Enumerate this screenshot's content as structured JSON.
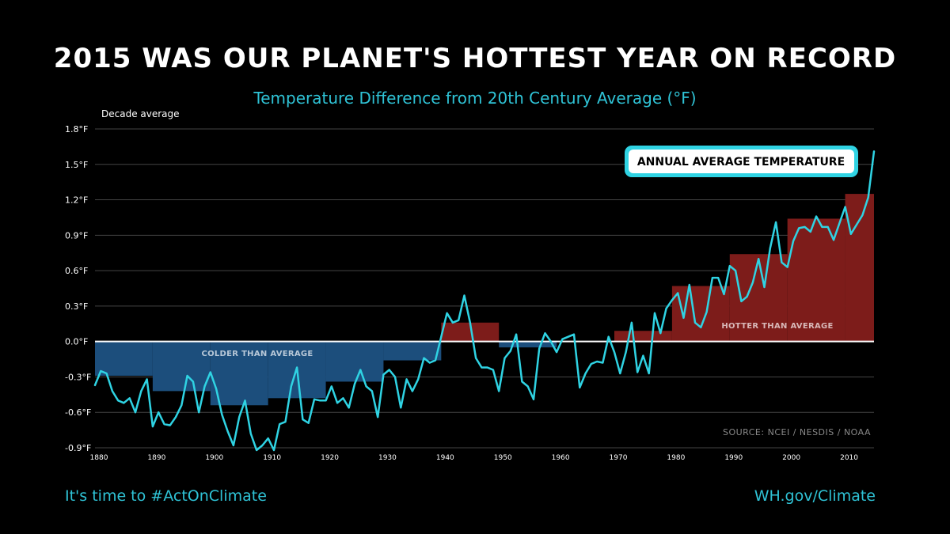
{
  "header": {
    "title": "2015 WAS OUR PLANET'S HOTTEST YEAR ON RECORD",
    "subtitle": "Temperature Difference from 20th Century Average (°F)"
  },
  "footer": {
    "left": "It's time to #ActOnClimate",
    "right": "WH.gov/Climate"
  },
  "chart_data": {
    "type": "bar",
    "title": "2015 WAS OUR PLANET'S HOTTEST YEAR ON RECORD",
    "subtitle": "Temperature Difference from 20th Century Average (°F)",
    "ylabel": "Decade average",
    "xlabel": "",
    "ylim": [
      -0.9,
      1.8
    ],
    "xlim": [
      1880,
      2015
    ],
    "yticks": [
      1.8,
      1.5,
      1.2,
      0.9,
      0.6,
      0.3,
      0.0,
      -0.3,
      -0.6,
      -0.9
    ],
    "ytick_labels": [
      "1.8°F",
      "1.5°F",
      "1.2°F",
      "0.9°F",
      "0.6°F",
      "0.3°F",
      "0.0°F",
      "-0.3°F",
      "-0.6°F",
      "-0.9°F"
    ],
    "xticks": [
      1880,
      1890,
      1900,
      1910,
      1920,
      1930,
      1940,
      1950,
      1960,
      1970,
      1980,
      1990,
      2000,
      2010
    ],
    "grid": true,
    "colors": {
      "cold": "#1c4e7c",
      "hot": "#7d1c1a",
      "line": "#2fd3e3",
      "grid": "#444444",
      "zero": "#ffffff"
    },
    "region_labels": {
      "cold": "COLDER THAN AVERAGE",
      "hot": "HOTTER THAN AVERAGE"
    },
    "callout": "ANNUAL AVERAGE TEMPERATURE",
    "source": "SOURCE: NCEI / NESDIS / NOAA",
    "decade_series": {
      "name": "Decade average",
      "bars": [
        {
          "start": 1880,
          "end": 1890,
          "value": -0.29
        },
        {
          "start": 1890,
          "end": 1900,
          "value": -0.42
        },
        {
          "start": 1900,
          "end": 1910,
          "value": -0.54
        },
        {
          "start": 1910,
          "end": 1920,
          "value": -0.48
        },
        {
          "start": 1920,
          "end": 1930,
          "value": -0.34
        },
        {
          "start": 1930,
          "end": 1940,
          "value": -0.16
        },
        {
          "start": 1940,
          "end": 1950,
          "value": 0.16
        },
        {
          "start": 1950,
          "end": 1960,
          "value": -0.05
        },
        {
          "start": 1960,
          "end": 1970,
          "value": 0.0
        },
        {
          "start": 1970,
          "end": 1980,
          "value": 0.09
        },
        {
          "start": 1980,
          "end": 1990,
          "value": 0.47
        },
        {
          "start": 1990,
          "end": 2000,
          "value": 0.74
        },
        {
          "start": 2000,
          "end": 2010,
          "value": 1.04
        },
        {
          "start": 2010,
          "end": 2016,
          "value": 1.25
        }
      ]
    },
    "annual_series": {
      "name": "Annual average temperature",
      "x": [
        1880,
        1881,
        1882,
        1883,
        1884,
        1885,
        1886,
        1887,
        1888,
        1889,
        1890,
        1891,
        1892,
        1893,
        1894,
        1895,
        1896,
        1897,
        1898,
        1899,
        1900,
        1901,
        1902,
        1903,
        1904,
        1905,
        1906,
        1907,
        1908,
        1909,
        1910,
        1911,
        1912,
        1913,
        1914,
        1915,
        1916,
        1917,
        1918,
        1919,
        1920,
        1921,
        1922,
        1923,
        1924,
        1925,
        1926,
        1927,
        1928,
        1929,
        1930,
        1931,
        1932,
        1933,
        1934,
        1935,
        1936,
        1937,
        1938,
        1939,
        1940,
        1941,
        1942,
        1943,
        1944,
        1945,
        1946,
        1947,
        1948,
        1949,
        1950,
        1951,
        1952,
        1953,
        1954,
        1955,
        1956,
        1957,
        1958,
        1959,
        1960,
        1961,
        1962,
        1963,
        1964,
        1965,
        1966,
        1967,
        1968,
        1969,
        1970,
        1971,
        1972,
        1973,
        1974,
        1975,
        1976,
        1977,
        1978,
        1979,
        1980,
        1981,
        1982,
        1983,
        1984,
        1985,
        1986,
        1987,
        1988,
        1989,
        1990,
        1991,
        1992,
        1993,
        1994,
        1995,
        1996,
        1997,
        1998,
        1999,
        2000,
        2001,
        2002,
        2003,
        2004,
        2005,
        2006,
        2007,
        2008,
        2009,
        2010,
        2011,
        2012,
        2013,
        2014,
        2015
      ],
      "values": [
        -0.37,
        -0.25,
        -0.27,
        -0.42,
        -0.5,
        -0.52,
        -0.48,
        -0.6,
        -0.42,
        -0.32,
        -0.72,
        -0.6,
        -0.7,
        -0.71,
        -0.64,
        -0.54,
        -0.29,
        -0.34,
        -0.6,
        -0.38,
        -0.26,
        -0.4,
        -0.62,
        -0.76,
        -0.88,
        -0.64,
        -0.5,
        -0.78,
        -0.92,
        -0.88,
        -0.82,
        -0.92,
        -0.7,
        -0.68,
        -0.38,
        -0.22,
        -0.66,
        -0.69,
        -0.49,
        -0.5,
        -0.5,
        -0.38,
        -0.52,
        -0.48,
        -0.56,
        -0.36,
        -0.24,
        -0.38,
        -0.42,
        -0.64,
        -0.28,
        -0.24,
        -0.3,
        -0.56,
        -0.32,
        -0.42,
        -0.32,
        -0.14,
        -0.18,
        -0.16,
        0.04,
        0.24,
        0.16,
        0.18,
        0.39,
        0.16,
        -0.14,
        -0.22,
        -0.22,
        -0.24,
        -0.42,
        -0.14,
        -0.08,
        0.06,
        -0.34,
        -0.38,
        -0.49,
        -0.06,
        0.07,
        0.0,
        -0.09,
        0.02,
        0.04,
        0.06,
        -0.39,
        -0.27,
        -0.19,
        -0.17,
        -0.18,
        0.04,
        -0.09,
        -0.27,
        -0.09,
        0.16,
        -0.26,
        -0.12,
        -0.27,
        0.24,
        0.07,
        0.28,
        0.35,
        0.41,
        0.2,
        0.48,
        0.16,
        0.12,
        0.25,
        0.54,
        0.54,
        0.4,
        0.64,
        0.6,
        0.34,
        0.38,
        0.5,
        0.7,
        0.46,
        0.79,
        1.01,
        0.67,
        0.63,
        0.85,
        0.96,
        0.97,
        0.93,
        1.06,
        0.97,
        0.97,
        0.86,
        1.0,
        1.14,
        0.91,
        0.99,
        1.07,
        1.22,
        1.61
      ]
    }
  }
}
